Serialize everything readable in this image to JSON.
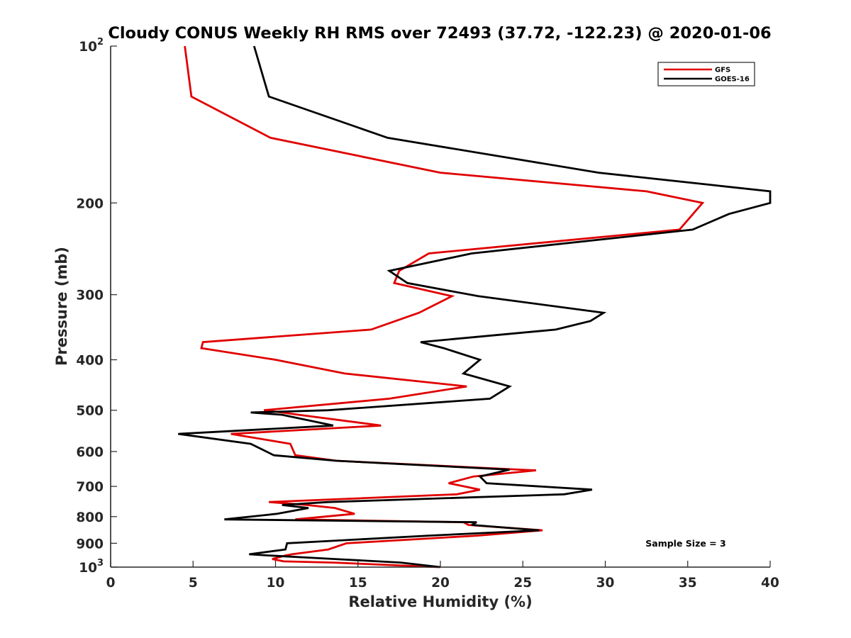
{
  "chart_data": {
    "type": "line",
    "title": "Cloudy CONUS Weekly RH RMS over 72493 (37.72, -122.23) @ 2020-01-06",
    "xlabel": "Relative Humidity (%)",
    "ylabel": "Pressure (mb)",
    "xlim": [
      0,
      40
    ],
    "ylim": [
      100,
      1000
    ],
    "y_scale": "log",
    "y_reversed": true,
    "x_ticks": [
      "0",
      "5",
      "10",
      "15",
      "20",
      "25",
      "30",
      "35",
      "40"
    ],
    "y_ticks": [
      {
        "value": 100,
        "base": "10",
        "exp": "2"
      },
      {
        "value": 200,
        "label": "200"
      },
      {
        "value": 300,
        "label": "300"
      },
      {
        "value": 400,
        "label": "400"
      },
      {
        "value": 500,
        "label": "500"
      },
      {
        "value": 600,
        "label": "600"
      },
      {
        "value": 700,
        "label": "700"
      },
      {
        "value": 800,
        "label": "800"
      },
      {
        "value": 900,
        "label": "900"
      },
      {
        "value": 1000,
        "base": "10",
        "exp": "3"
      }
    ],
    "legend_position": "top-right",
    "grid": false,
    "annotation": "Sample Size = 3",
    "series": [
      {
        "name": "GFS",
        "color": "#e00000",
        "points": [
          [
            4.5,
            100
          ],
          [
            4.9,
            125
          ],
          [
            9.7,
            150
          ],
          [
            20.0,
            175
          ],
          [
            32.5,
            190
          ],
          [
            35.9,
            200
          ],
          [
            34.5,
            225
          ],
          [
            19.3,
            250
          ],
          [
            17.5,
            270
          ],
          [
            17.2,
            285
          ],
          [
            20.7,
            302
          ],
          [
            18.7,
            325
          ],
          [
            15.8,
            350
          ],
          [
            5.6,
            370
          ],
          [
            5.5,
            380
          ],
          [
            10.0,
            400
          ],
          [
            14.2,
            425
          ],
          [
            21.6,
            450
          ],
          [
            16.9,
            475
          ],
          [
            9.3,
            500
          ],
          [
            10.4,
            505
          ],
          [
            11.4,
            510
          ],
          [
            16.4,
            535
          ],
          [
            7.3,
            555
          ],
          [
            10.9,
            580
          ],
          [
            11.2,
            610
          ],
          [
            13.7,
            625
          ],
          [
            24.8,
            650
          ],
          [
            25.8,
            652
          ],
          [
            22.0,
            670
          ],
          [
            20.5,
            690
          ],
          [
            22.4,
            710
          ],
          [
            21.0,
            725
          ],
          [
            9.6,
            750
          ],
          [
            11.9,
            760
          ],
          [
            13.6,
            770
          ],
          [
            14.8,
            790
          ],
          [
            11.2,
            810
          ],
          [
            21.4,
            820
          ],
          [
            21.7,
            830
          ],
          [
            26.2,
            850
          ],
          [
            22.3,
            870
          ],
          [
            14.3,
            900
          ],
          [
            13.2,
            925
          ],
          [
            11.0,
            945
          ],
          [
            10.6,
            950
          ],
          [
            9.8,
            965
          ],
          [
            10.5,
            975
          ],
          [
            13.5,
            980
          ],
          [
            19.9,
            1000
          ]
        ]
      },
      {
        "name": "GOES-16",
        "color": "#000000",
        "points": [
          [
            8.7,
            100
          ],
          [
            9.6,
            125
          ],
          [
            16.8,
            150
          ],
          [
            29.6,
            175
          ],
          [
            40.0,
            190
          ],
          [
            40.0,
            200
          ],
          [
            37.5,
            210
          ],
          [
            35.3,
            225
          ],
          [
            21.9,
            250
          ],
          [
            16.9,
            270
          ],
          [
            18.0,
            285
          ],
          [
            22.3,
            302
          ],
          [
            29.9,
            325
          ],
          [
            29.1,
            337
          ],
          [
            27.0,
            350
          ],
          [
            18.8,
            370
          ],
          [
            20.2,
            380
          ],
          [
            22.4,
            400
          ],
          [
            21.4,
            425
          ],
          [
            24.2,
            450
          ],
          [
            23.0,
            475
          ],
          [
            13.2,
            500
          ],
          [
            8.5,
            505
          ],
          [
            10.4,
            510
          ],
          [
            13.5,
            535
          ],
          [
            4.1,
            555
          ],
          [
            8.5,
            580
          ],
          [
            9.9,
            610
          ],
          [
            13.7,
            625
          ],
          [
            24.2,
            650
          ],
          [
            22.4,
            670
          ],
          [
            22.8,
            690
          ],
          [
            29.2,
            710
          ],
          [
            27.5,
            725
          ],
          [
            13.2,
            750
          ],
          [
            10.4,
            760
          ],
          [
            12.0,
            770
          ],
          [
            10.1,
            790
          ],
          [
            6.9,
            810
          ],
          [
            22.2,
            820
          ],
          [
            21.9,
            830
          ],
          [
            26.0,
            850
          ],
          [
            19.4,
            870
          ],
          [
            10.7,
            900
          ],
          [
            10.6,
            925
          ],
          [
            8.4,
            945
          ],
          [
            9.6,
            950
          ],
          [
            13.6,
            965
          ],
          [
            17.6,
            980
          ],
          [
            20.0,
            1000
          ]
        ]
      }
    ]
  }
}
